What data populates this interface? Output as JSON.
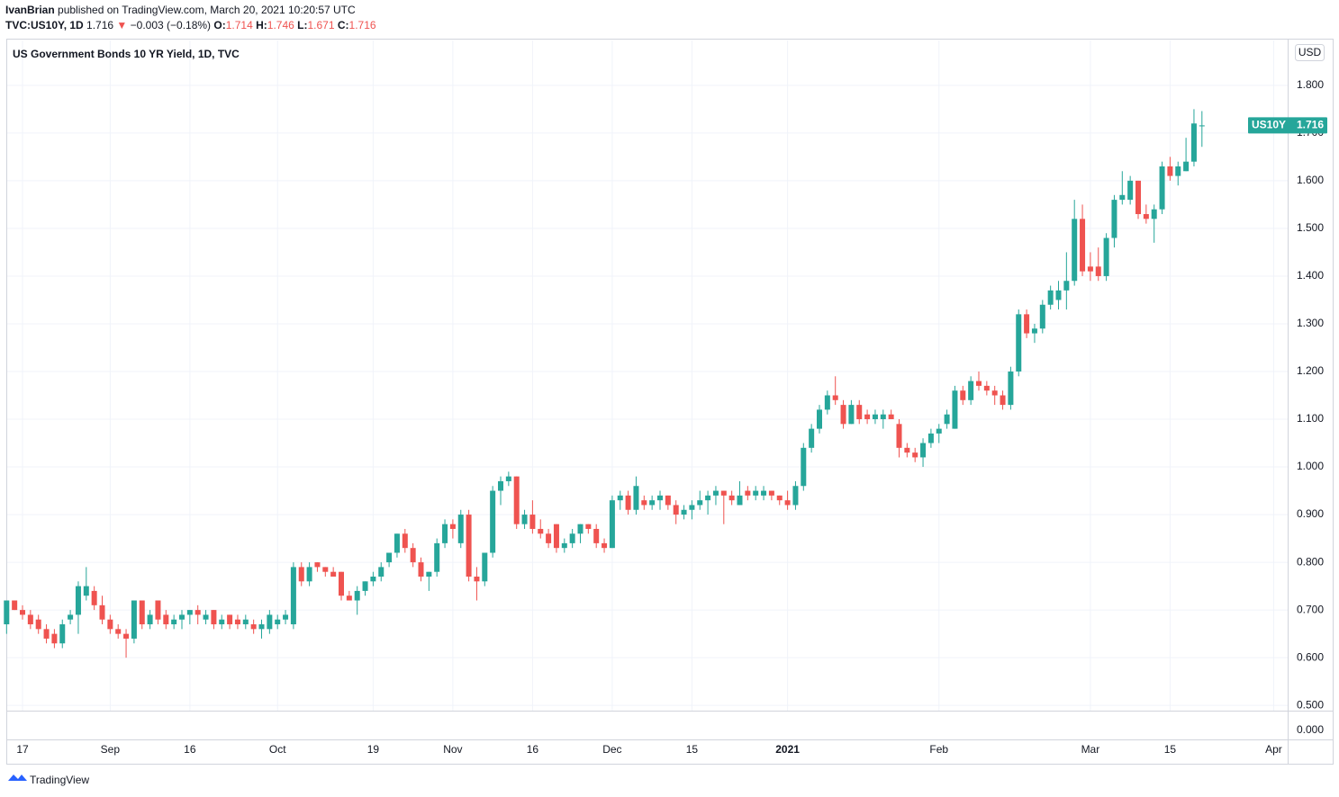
{
  "header": {
    "author": "IvanBrian",
    "published": "published on TradingView.com, March 20, 2021 10:20:57 UTC",
    "symbol": "TVC:US10Y, 1D",
    "last": "1.716",
    "arrow": "▼",
    "change": "−0.003 (−0.18%)",
    "ohlc": [
      {
        "label": "O:",
        "value": "1.714"
      },
      {
        "label": "H:",
        "value": "1.746"
      },
      {
        "label": "L:",
        "value": "1.671"
      },
      {
        "label": "C:",
        "value": "1.716"
      }
    ]
  },
  "chart_data": {
    "type": "candlestick",
    "title": "US Government Bonds 10 YR Yield, 1D, TVC",
    "currency": "USD",
    "categories": [
      null,
      null,
      "17",
      null,
      null,
      null,
      null,
      null,
      null,
      null,
      null,
      null,
      null,
      "Sep",
      null,
      null,
      null,
      null,
      null,
      null,
      null,
      null,
      null,
      "16",
      null,
      null,
      null,
      null,
      null,
      null,
      null,
      null,
      null,
      null,
      "Oct",
      null,
      null,
      null,
      null,
      null,
      null,
      null,
      null,
      null,
      null,
      null,
      "19",
      null,
      null,
      null,
      null,
      null,
      null,
      null,
      null,
      null,
      "Nov",
      null,
      null,
      null,
      null,
      null,
      null,
      null,
      null,
      null,
      "16",
      null,
      null,
      null,
      null,
      null,
      null,
      null,
      null,
      null,
      "Dec",
      null,
      null,
      null,
      null,
      null,
      null,
      null,
      null,
      null,
      "15",
      null,
      null,
      null,
      null,
      null,
      null,
      null,
      null,
      null,
      null,
      null,
      "2021",
      null,
      null,
      null,
      null,
      null,
      null,
      null,
      null,
      null,
      null,
      null,
      null,
      null,
      null,
      null,
      null,
      null,
      null,
      "Feb",
      null,
      null,
      null,
      null,
      null,
      null,
      null,
      null,
      null,
      null,
      null,
      null,
      null,
      null,
      null,
      null,
      null,
      null,
      "Mar",
      null,
      null,
      null,
      null,
      null,
      null,
      null,
      null,
      null,
      "15",
      null,
      null,
      null,
      null,
      null,
      null,
      null,
      null,
      null,
      null,
      null,
      null,
      "Apr"
    ],
    "series": [
      {
        "name": "US10Y",
        "up_color": "#26a69a",
        "down_color": "#ef5350",
        "open": [
          0.67,
          0.72,
          0.7,
          0.69,
          0.68,
          0.66,
          0.65,
          0.63,
          0.68,
          0.69,
          0.73,
          0.74,
          0.71,
          0.68,
          0.66,
          0.65,
          0.64,
          0.72,
          0.67,
          0.72,
          0.69,
          0.67,
          0.68,
          0.69,
          0.7,
          0.68,
          0.7,
          0.67,
          0.69,
          0.68,
          0.67,
          0.67,
          0.66,
          0.66,
          0.67,
          0.68,
          0.67,
          0.79,
          0.76,
          0.8,
          0.79,
          0.78,
          0.78,
          0.73,
          0.72,
          0.74,
          0.76,
          0.77,
          0.8,
          0.82,
          0.86,
          0.83,
          0.8,
          0.77,
          0.78,
          0.84,
          0.88,
          0.84,
          0.9,
          0.77,
          0.76,
          0.82,
          0.95,
          0.97,
          0.98,
          0.88,
          0.9,
          0.87,
          0.86,
          0.88,
          0.83,
          0.84,
          0.86,
          0.88,
          0.87,
          0.84,
          0.83,
          0.93,
          0.94,
          0.91,
          0.93,
          0.92,
          0.93,
          0.94,
          0.92,
          0.9,
          0.91,
          0.92,
          0.93,
          0.94,
          0.95,
          0.94,
          0.92,
          0.95,
          0.94,
          0.94,
          0.95,
          0.94,
          0.93,
          0.92,
          0.96,
          1.04,
          1.08,
          1.12,
          1.15,
          1.13,
          1.09,
          1.13,
          1.11,
          1.1,
          1.1,
          1.11,
          1.09,
          1.04,
          1.03,
          1.02,
          1.05,
          1.07,
          1.09,
          1.08,
          1.16,
          1.14,
          1.18,
          1.17,
          1.16,
          1.15,
          1.13,
          1.2,
          1.32,
          1.28,
          1.29,
          1.34,
          1.35,
          1.37,
          1.39,
          1.52,
          1.42,
          1.42,
          1.4,
          1.48,
          1.56,
          1.56,
          1.6,
          1.53,
          1.52,
          1.54,
          1.63,
          1.61,
          1.62,
          1.64,
          1.714,
          null,
          null,
          null,
          null,
          null,
          null,
          null,
          null,
          null
        ],
        "high": [
          0.72,
          0.72,
          0.71,
          0.7,
          0.69,
          0.67,
          0.66,
          0.68,
          0.7,
          0.76,
          0.79,
          0.75,
          0.73,
          0.69,
          0.67,
          0.66,
          0.72,
          0.72,
          0.7,
          0.72,
          0.7,
          0.69,
          0.7,
          0.7,
          0.71,
          0.7,
          0.7,
          0.69,
          0.69,
          0.69,
          0.69,
          0.68,
          0.68,
          0.7,
          0.69,
          0.7,
          0.8,
          0.8,
          0.8,
          0.8,
          0.79,
          0.79,
          0.78,
          0.74,
          0.75,
          0.76,
          0.78,
          0.8,
          0.82,
          0.86,
          0.87,
          0.84,
          0.81,
          0.78,
          0.85,
          0.89,
          0.89,
          0.91,
          0.91,
          0.79,
          0.82,
          0.96,
          0.98,
          0.99,
          0.98,
          0.91,
          0.93,
          0.89,
          0.87,
          0.88,
          0.85,
          0.87,
          0.88,
          0.88,
          0.88,
          0.85,
          0.94,
          0.95,
          0.95,
          0.98,
          0.94,
          0.94,
          0.95,
          0.94,
          0.93,
          0.92,
          0.93,
          0.95,
          0.95,
          0.96,
          0.95,
          0.95,
          0.97,
          0.96,
          0.96,
          0.96,
          0.95,
          0.94,
          0.95,
          0.97,
          1.05,
          1.09,
          1.13,
          1.16,
          1.19,
          1.14,
          1.14,
          1.14,
          1.12,
          1.12,
          1.12,
          1.12,
          1.1,
          1.05,
          1.04,
          1.06,
          1.08,
          1.09,
          1.12,
          1.17,
          1.17,
          1.19,
          1.2,
          1.18,
          1.17,
          1.16,
          1.21,
          1.33,
          1.33,
          1.3,
          1.35,
          1.38,
          1.39,
          1.45,
          1.56,
          1.55,
          1.45,
          1.46,
          1.49,
          1.57,
          1.62,
          1.61,
          1.6,
          1.55,
          1.55,
          1.64,
          1.65,
          1.64,
          1.69,
          1.75,
          1.746,
          null,
          null,
          null,
          null,
          null,
          null,
          null,
          null,
          null
        ],
        "low": [
          0.65,
          0.7,
          0.68,
          0.66,
          0.65,
          0.63,
          0.62,
          0.62,
          0.67,
          0.65,
          0.72,
          0.7,
          0.67,
          0.65,
          0.64,
          0.6,
          0.63,
          0.66,
          0.66,
          0.67,
          0.66,
          0.66,
          0.66,
          0.67,
          0.67,
          0.67,
          0.66,
          0.66,
          0.66,
          0.66,
          0.66,
          0.65,
          0.64,
          0.65,
          0.66,
          0.67,
          0.66,
          0.75,
          0.75,
          0.78,
          0.77,
          0.77,
          0.72,
          0.72,
          0.69,
          0.73,
          0.75,
          0.76,
          0.79,
          0.81,
          0.82,
          0.79,
          0.76,
          0.74,
          0.77,
          0.83,
          0.85,
          0.83,
          0.76,
          0.72,
          0.75,
          0.81,
          0.92,
          0.96,
          0.87,
          0.87,
          0.86,
          0.85,
          0.83,
          0.82,
          0.82,
          0.83,
          0.84,
          0.86,
          0.83,
          0.82,
          0.83,
          0.91,
          0.9,
          0.9,
          0.91,
          0.91,
          0.91,
          0.91,
          0.88,
          0.89,
          0.89,
          0.91,
          0.9,
          0.92,
          0.88,
          0.92,
          0.92,
          0.93,
          0.93,
          0.93,
          0.93,
          0.92,
          0.91,
          0.91,
          0.95,
          1.03,
          1.07,
          1.11,
          1.13,
          1.08,
          1.09,
          1.09,
          1.09,
          1.09,
          1.08,
          1.1,
          1.02,
          1.02,
          1.01,
          1.0,
          1.04,
          1.05,
          1.08,
          1.08,
          1.13,
          1.13,
          1.16,
          1.15,
          1.13,
          1.12,
          1.12,
          1.19,
          1.27,
          1.26,
          1.28,
          1.33,
          1.33,
          1.33,
          1.38,
          1.4,
          1.39,
          1.39,
          1.39,
          1.46,
          1.55,
          1.55,
          1.52,
          1.51,
          1.47,
          1.53,
          1.6,
          1.59,
          1.62,
          1.63,
          1.671,
          null,
          null,
          null,
          null,
          null,
          null,
          null,
          null,
          null
        ],
        "close": [
          0.72,
          0.7,
          0.69,
          0.67,
          0.66,
          0.64,
          0.63,
          0.67,
          0.69,
          0.75,
          0.75,
          0.71,
          0.68,
          0.66,
          0.65,
          0.64,
          0.72,
          0.67,
          0.69,
          0.68,
          0.67,
          0.68,
          0.69,
          0.7,
          0.69,
          0.69,
          0.67,
          0.68,
          0.67,
          0.67,
          0.68,
          0.66,
          0.67,
          0.69,
          0.68,
          0.69,
          0.79,
          0.76,
          0.79,
          0.79,
          0.78,
          0.77,
          0.73,
          0.72,
          0.74,
          0.76,
          0.77,
          0.79,
          0.82,
          0.86,
          0.83,
          0.8,
          0.77,
          0.78,
          0.84,
          0.88,
          0.87,
          0.9,
          0.77,
          0.76,
          0.82,
          0.95,
          0.97,
          0.98,
          0.88,
          0.9,
          0.87,
          0.86,
          0.84,
          0.83,
          0.84,
          0.86,
          0.88,
          0.87,
          0.84,
          0.83,
          0.93,
          0.94,
          0.91,
          0.96,
          0.92,
          0.93,
          0.94,
          0.92,
          0.9,
          0.91,
          0.92,
          0.93,
          0.94,
          0.95,
          0.94,
          0.93,
          0.94,
          0.94,
          0.95,
          0.95,
          0.94,
          0.93,
          0.92,
          0.96,
          1.04,
          1.08,
          1.12,
          1.15,
          1.14,
          1.09,
          1.13,
          1.1,
          1.1,
          1.11,
          1.11,
          1.1,
          1.04,
          1.03,
          1.02,
          1.05,
          1.07,
          1.08,
          1.11,
          1.16,
          1.14,
          1.18,
          1.17,
          1.16,
          1.15,
          1.13,
          1.2,
          1.32,
          1.28,
          1.29,
          1.34,
          1.37,
          1.37,
          1.39,
          1.52,
          1.41,
          1.41,
          1.4,
          1.48,
          1.56,
          1.57,
          1.6,
          1.53,
          1.52,
          1.54,
          1.63,
          1.61,
          1.63,
          1.64,
          1.72,
          1.716,
          null,
          null,
          null,
          null,
          null,
          null,
          null,
          null,
          null
        ]
      }
    ],
    "ylim": [
      0.489,
      1.894
    ],
    "yticks": [
      {
        "value": 0.5,
        "label": "0.500"
      },
      {
        "value": 0.6,
        "label": "0.600"
      },
      {
        "value": 0.7,
        "label": "0.700"
      },
      {
        "value": 0.8,
        "label": "0.800"
      },
      {
        "value": 0.9,
        "label": "0.900"
      },
      {
        "value": 1.0,
        "label": "1.000"
      },
      {
        "value": 1.1,
        "label": "1.100"
      },
      {
        "value": 1.2,
        "label": "1.200"
      },
      {
        "value": 1.3,
        "label": "1.300"
      },
      {
        "value": 1.4,
        "label": "1.400"
      },
      {
        "value": 1.5,
        "label": "1.500"
      },
      {
        "value": 1.6,
        "label": "1.600"
      },
      {
        "value": 1.7,
        "label": "1.700"
      },
      {
        "value": 1.8,
        "label": "1.800"
      }
    ],
    "lower_pane": {
      "yticks": [
        {
          "value": 0,
          "label": "0.000"
        }
      ]
    },
    "grid": true
  },
  "footer": {
    "brand": "TradingView"
  }
}
